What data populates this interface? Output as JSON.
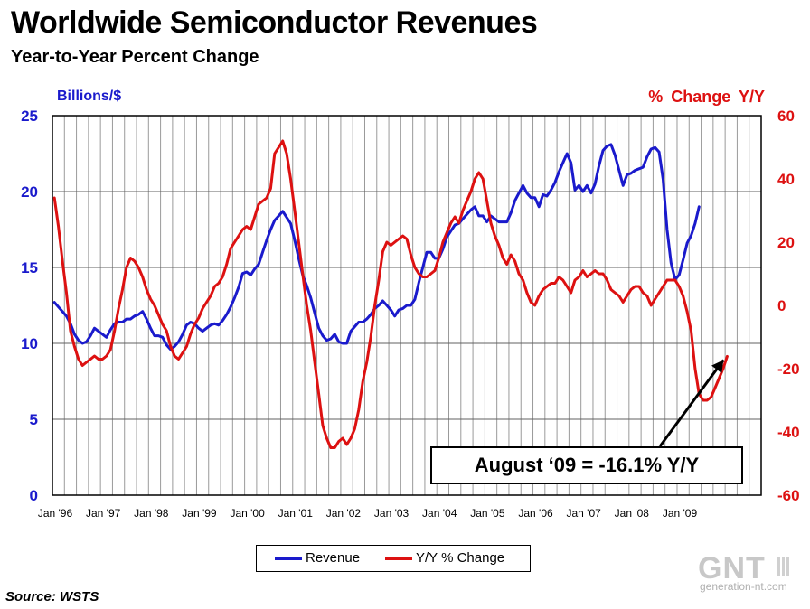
{
  "title": "Worldwide Semiconductor Revenues",
  "subtitle": "Year-to-Year Percent Change",
  "left_axis_unit": "Billions/$",
  "right_axis_unit": "% Change Y/Y",
  "source": "Source: WSTS",
  "callout": "August ‘09 = -16.1% Y/Y",
  "logo": {
    "text": "GNT",
    "url": "generation-nt.com"
  },
  "colors": {
    "revenue": "#1a1acc",
    "yoy": "#dd1111",
    "grid": "#888888"
  },
  "legend": {
    "revenue": "Revenue",
    "yoy": "Y/Y % Change"
  },
  "chart_data": {
    "type": "line",
    "title": "Worldwide Semiconductor Revenues",
    "subtitle": "Year-to-Year Percent Change",
    "x_tick_labels": [
      "Jan '96",
      "Jan '97",
      "Jan '98",
      "Jan '99",
      "Jan '00",
      "Jan '01",
      "Jan '02",
      "Jan '03",
      "Jan '04",
      "Jan '05",
      "Jan '06",
      "Jan '07",
      "Jan '08",
      "Jan '09"
    ],
    "left_axis": {
      "label": "Billions/$",
      "ylim": [
        0,
        25
      ],
      "ticks": [
        0,
        5,
        10,
        15,
        20,
        25
      ]
    },
    "right_axis": {
      "label": "% Change Y/Y",
      "ylim": [
        -60,
        60
      ],
      "ticks": [
        -60,
        -40,
        -20,
        0,
        20,
        40,
        60
      ]
    },
    "grid": true,
    "legend_position": "bottom-center",
    "x_start": "Jan '96",
    "series": [
      {
        "name": "Revenue",
        "axis": "left",
        "values": [
          12.7,
          12.4,
          12.1,
          11.8,
          11.3,
          10.6,
          10.2,
          10.0,
          10.1,
          10.5,
          11.0,
          10.8,
          10.6,
          10.4,
          10.9,
          11.3,
          11.4,
          11.4,
          11.6,
          11.6,
          11.8,
          11.9,
          12.1,
          11.6,
          11.0,
          10.5,
          10.5,
          10.4,
          9.9,
          9.6,
          9.8,
          10.1,
          10.6,
          11.2,
          11.4,
          11.3,
          11.0,
          10.8,
          11.0,
          11.2,
          11.3,
          11.2,
          11.5,
          11.9,
          12.4,
          13.0,
          13.7,
          14.6,
          14.7,
          14.5,
          14.9,
          15.2,
          16.0,
          16.8,
          17.5,
          18.1,
          18.4,
          18.7,
          18.3,
          17.9,
          16.8,
          15.6,
          14.5,
          13.8,
          13.0,
          12.0,
          11.0,
          10.5,
          10.2,
          10.3,
          10.6,
          10.1,
          10.0,
          10.0,
          10.8,
          11.1,
          11.4,
          11.4,
          11.6,
          11.9,
          12.3,
          12.5,
          12.8,
          12.5,
          12.2,
          11.8,
          12.2,
          12.3,
          12.5,
          12.5,
          12.9,
          14.0,
          15.0,
          16.0,
          16.0,
          15.6,
          15.6,
          16.2,
          17.0,
          17.4,
          17.8,
          17.9,
          18.2,
          18.5,
          18.8,
          19.0,
          18.4,
          18.4,
          18.0,
          18.4,
          18.2,
          18.0,
          18.0,
          18.0,
          18.6,
          19.4,
          19.9,
          20.4,
          19.9,
          19.6,
          19.6,
          19.0,
          19.8,
          19.7,
          20.1,
          20.6,
          21.3,
          21.9,
          22.5,
          21.9,
          20.1,
          20.4,
          20.0,
          20.4,
          19.9,
          20.5,
          21.7,
          22.7,
          23.0,
          23.1,
          22.4,
          21.4,
          20.4,
          21.1,
          21.2,
          21.4,
          21.5,
          21.6,
          22.3,
          22.8,
          22.9,
          22.6,
          20.8,
          17.5,
          15.3,
          14.2,
          14.5,
          15.5,
          16.6,
          17.1,
          17.9,
          19.0
        ]
      },
      {
        "name": "Y/Y % Change",
        "axis": "right",
        "values": [
          34,
          25,
          14,
          4,
          -8,
          -13,
          -17,
          -19,
          -18,
          -17,
          -16,
          -17,
          -17,
          -16,
          -14,
          -8,
          -1,
          5,
          12,
          15,
          14,
          12,
          9,
          5,
          2,
          0,
          -3,
          -6,
          -8,
          -13,
          -16,
          -17,
          -15,
          -13,
          -9,
          -6,
          -4,
          -1,
          1,
          3,
          6,
          7,
          9,
          13,
          18,
          20,
          22,
          24,
          25,
          24,
          28,
          32,
          33,
          34,
          37,
          48,
          50,
          52,
          48,
          40,
          30,
          20,
          10,
          0,
          -8,
          -18,
          -28,
          -38,
          -42,
          -45,
          -45,
          -43,
          -42,
          -44,
          -42,
          -39,
          -33,
          -24,
          -18,
          -10,
          0,
          8,
          17,
          20,
          19,
          20,
          21,
          22,
          21,
          16,
          12,
          10,
          9,
          9,
          10,
          11,
          15,
          20,
          23,
          26,
          28,
          26,
          30,
          33,
          36,
          40,
          42,
          40,
          33,
          26,
          22,
          19,
          15,
          13,
          16,
          14,
          10,
          8,
          4,
          1,
          0,
          3,
          5,
          6,
          7,
          7,
          9,
          8,
          6,
          4,
          8,
          9,
          11,
          9,
          10,
          11,
          10,
          10,
          8,
          5,
          4,
          3,
          1,
          3,
          5,
          6,
          6,
          4,
          3,
          0,
          2,
          4,
          6,
          8,
          8,
          8,
          6,
          3,
          -2,
          -8,
          -20,
          -28,
          -30,
          -30,
          -29,
          -26,
          -23,
          -20,
          -16.1
        ]
      }
    ],
    "annotation": "August ‘09 = -16.1% Y/Y"
  }
}
